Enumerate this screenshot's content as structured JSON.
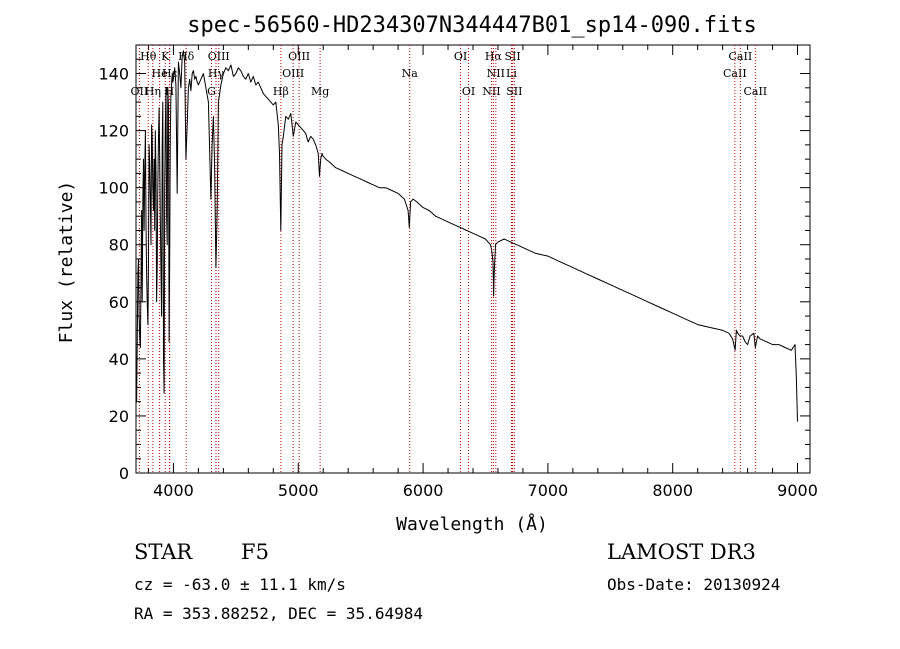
{
  "chart_data": {
    "type": "line",
    "title": "spec-56560-HD234307N344447B01_sp14-090.fits",
    "xlabel": "Wavelength (Å)",
    "ylabel": "Flux (relative)",
    "xlim": [
      3700,
      9100
    ],
    "ylim": [
      0,
      150
    ],
    "xticks": [
      4000,
      5000,
      6000,
      7000,
      8000,
      9000
    ],
    "yticks": [
      0,
      20,
      40,
      60,
      80,
      100,
      120,
      140
    ],
    "grid": false,
    "series": [
      {
        "name": "flux",
        "x": [
          3700,
          3705,
          3710,
          3715,
          3720,
          3725,
          3730,
          3735,
          3740,
          3745,
          3750,
          3755,
          3760,
          3765,
          3770,
          3775,
          3780,
          3785,
          3790,
          3795,
          3800,
          3805,
          3810,
          3815,
          3820,
          3825,
          3830,
          3835,
          3840,
          3845,
          3850,
          3855,
          3860,
          3865,
          3870,
          3875,
          3880,
          3885,
          3890,
          3895,
          3900,
          3905,
          3910,
          3915,
          3920,
          3925,
          3930,
          3935,
          3940,
          3945,
          3950,
          3955,
          3960,
          3965,
          3970,
          3975,
          3980,
          3985,
          3990,
          3995,
          4000,
          4010,
          4020,
          4030,
          4040,
          4050,
          4060,
          4070,
          4080,
          4090,
          4100,
          4110,
          4120,
          4130,
          4140,
          4150,
          4160,
          4170,
          4180,
          4190,
          4200,
          4220,
          4240,
          4260,
          4280,
          4300,
          4310,
          4320,
          4330,
          4340,
          4350,
          4360,
          4380,
          4400,
          4420,
          4440,
          4460,
          4480,
          4500,
          4520,
          4540,
          4560,
          4580,
          4600,
          4620,
          4640,
          4660,
          4680,
          4700,
          4720,
          4740,
          4760,
          4780,
          4800,
          4820,
          4840,
          4850,
          4860,
          4870,
          4880,
          4900,
          4920,
          4940,
          4960,
          4980,
          5000,
          5020,
          5040,
          5060,
          5080,
          5100,
          5120,
          5140,
          5160,
          5170,
          5180,
          5190,
          5200,
          5220,
          5250,
          5300,
          5350,
          5400,
          5450,
          5500,
          5550,
          5600,
          5650,
          5700,
          5750,
          5800,
          5850,
          5880,
          5890,
          5900,
          5920,
          5950,
          6000,
          6050,
          6100,
          6150,
          6200,
          6250,
          6300,
          6350,
          6400,
          6450,
          6500,
          6520,
          6540,
          6550,
          6560,
          6565,
          6570,
          6580,
          6600,
          6650,
          6700,
          6750,
          6800,
          6850,
          6900,
          7000,
          7100,
          7200,
          7300,
          7400,
          7500,
          7600,
          7700,
          7800,
          7900,
          8000,
          8100,
          8200,
          8300,
          8400,
          8450,
          8480,
          8500,
          8510,
          8520,
          8540,
          8560,
          8580,
          8600,
          8620,
          8650,
          8662,
          8680,
          8700,
          8750,
          8800,
          8850,
          8900,
          8950,
          8980,
          8990,
          9000
        ],
        "y": [
          30,
          25,
          45,
          70,
          75,
          55,
          48,
          44,
          68,
          92,
          60,
          98,
          110,
          85,
          105,
          120,
          88,
          70,
          60,
          52,
          75,
          115,
          108,
          95,
          80,
          122,
          118,
          100,
          92,
          110,
          85,
          120,
          105,
          60,
          72,
          100,
          118,
          128,
          110,
          90,
          70,
          55,
          115,
          130,
          40,
          28,
          100,
          120,
          135,
          90,
          80,
          135,
          128,
          46,
          78,
          118,
          132,
          136,
          140,
          137,
          138,
          142,
          136,
          98,
          144,
          140,
          135,
          146,
          148,
          144,
          110,
          122,
          135,
          138,
          134,
          140,
          141,
          138,
          139,
          137,
          136,
          138,
          140,
          135,
          130,
          96,
          115,
          125,
          108,
          72,
          90,
          130,
          136,
          140,
          142,
          141,
          143,
          139,
          140,
          142,
          141,
          139,
          138,
          140,
          137,
          139,
          136,
          137,
          135,
          133,
          132,
          131,
          130,
          129,
          130,
          122,
          112,
          85,
          115,
          118,
          125,
          124,
          126,
          118,
          123,
          122,
          121,
          120,
          119,
          116,
          118,
          117,
          115,
          112,
          104,
          110,
          112,
          111,
          110,
          109,
          107,
          106,
          105,
          104,
          103,
          102,
          101,
          100,
          100,
          99,
          98,
          96,
          92,
          86,
          95,
          96,
          95,
          93,
          92,
          90,
          89,
          88,
          87,
          86,
          85,
          84,
          83,
          82,
          81,
          80,
          78,
          74,
          62,
          70,
          80,
          81,
          82,
          81,
          80,
          79,
          78,
          77,
          76,
          74,
          72,
          70,
          68,
          66,
          64,
          62,
          60,
          58,
          56,
          54,
          52,
          51,
          50,
          49,
          47,
          43,
          50,
          49,
          48,
          48,
          46,
          45,
          48,
          49,
          44,
          48,
          47,
          46,
          45,
          45,
          44,
          43,
          45,
          34,
          18
        ]
      }
    ],
    "lines": [
      {
        "label": "Hθ",
        "x": 3798,
        "row": 1
      },
      {
        "label": "OII",
        "x": 3727,
        "row": 3
      },
      {
        "label": "He",
        "x": 3889,
        "row": 2
      },
      {
        "label": "Hη",
        "x": 3835,
        "row": 3
      },
      {
        "label": "K",
        "x": 3934,
        "row": 1
      },
      {
        "label": "H",
        "x": 3968,
        "row": 3
      },
      {
        "label": "Hδ",
        "x": 4102,
        "row": 1
      },
      {
        "label": "Hε",
        "x": 3970,
        "row": 2
      },
      {
        "label": "OIII",
        "x": 4363,
        "row": 1
      },
      {
        "label": "G",
        "x": 4305,
        "row": 3
      },
      {
        "label": "Hγ",
        "x": 4341,
        "row": 2
      },
      {
        "label": "Hβ",
        "x": 4861,
        "row": 3
      },
      {
        "label": "OIII",
        "x": 4959,
        "row": 2
      },
      {
        "label": "OIII",
        "x": 5007,
        "row": 1
      },
      {
        "label": "Mg",
        "x": 5175,
        "row": 3
      },
      {
        "label": "Na",
        "x": 5893,
        "row": 2
      },
      {
        "label": "OI",
        "x": 6300,
        "row": 1
      },
      {
        "label": "OI",
        "x": 6364,
        "row": 3
      },
      {
        "label": "NII",
        "x": 6548,
        "row": 3
      },
      {
        "label": "Hα",
        "x": 6563,
        "row": 1
      },
      {
        "label": "NII",
        "x": 6583,
        "row": 2
      },
      {
        "label": "Li",
        "x": 6708,
        "row": 2
      },
      {
        "label": "SII",
        "x": 6717,
        "row": 1
      },
      {
        "label": "SII",
        "x": 6731,
        "row": 3
      },
      {
        "label": "CaII",
        "x": 8498,
        "row": 2
      },
      {
        "label": "CaII",
        "x": 8542,
        "row": 1
      },
      {
        "label": "CaII",
        "x": 8662,
        "row": 3
      }
    ]
  },
  "annotations": {
    "object_class": "STAR",
    "subclass": "F5",
    "survey": "LAMOST DR3",
    "cz": "cz = -63.0 ± 11.1 km/s",
    "obs_date": "Obs-Date: 20130924",
    "coords": "RA = 353.88252, DEC =  35.64984"
  }
}
